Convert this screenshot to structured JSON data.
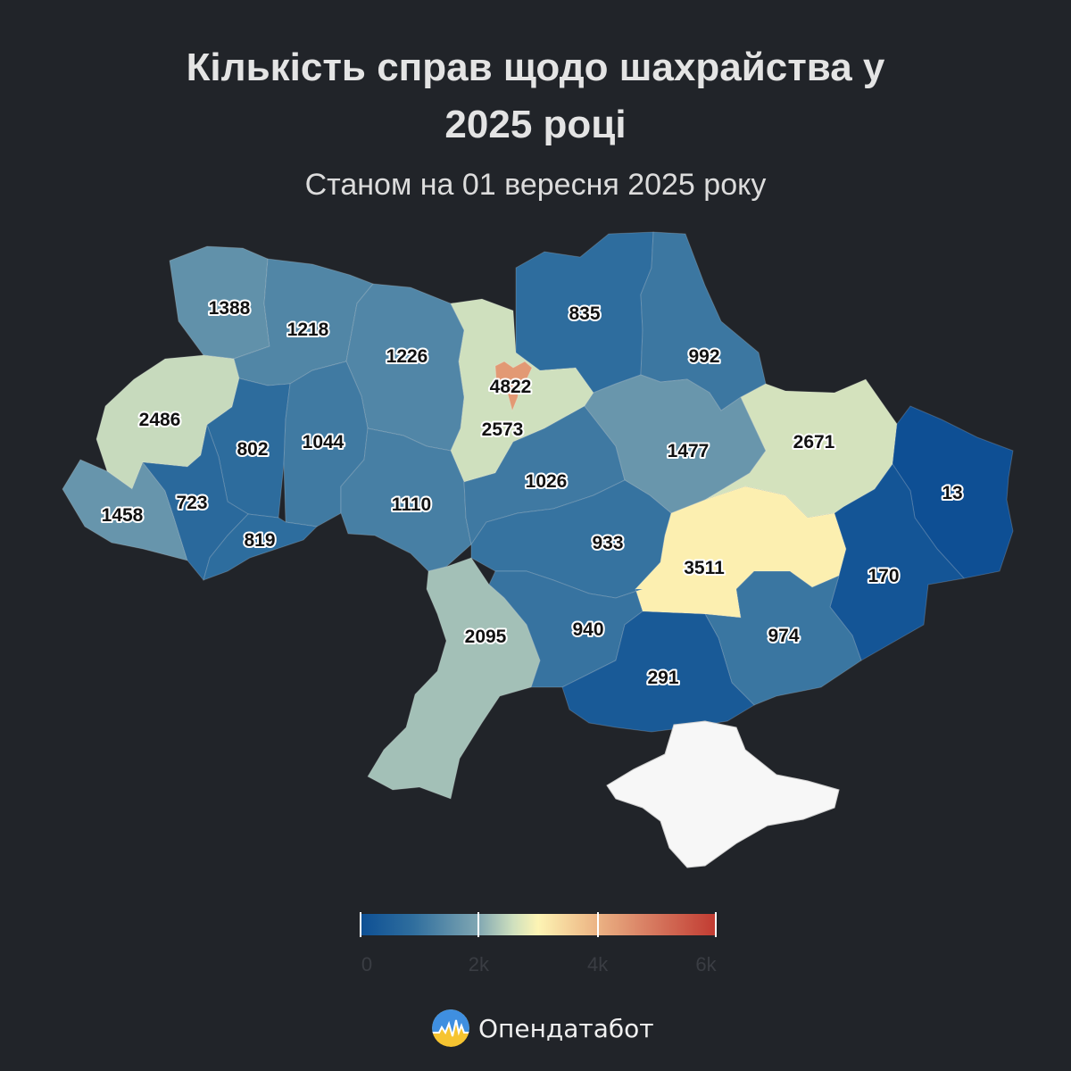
{
  "title_line1": "Кількість справ щодо шахрайства у",
  "title_line2": "2025 році",
  "subtitle": "Станом на 01 вересня 2025 року",
  "legend": {
    "min": 0,
    "max": 6000,
    "ticks": [
      "0",
      "2k",
      "4k",
      "6k"
    ],
    "tick_values": [
      0,
      2000,
      4000,
      6000
    ]
  },
  "brand": {
    "name": "Опендатабот"
  },
  "colors": {
    "background": "#212429",
    "crimea": "#f7f7f7",
    "scale": [
      "#0d4f94",
      "#2f6e9e",
      "#7fa6b2",
      "#cfe0be",
      "#fdf4b4",
      "#f1c48f",
      "#d98064",
      "#c13a31"
    ]
  },
  "regions": [
    {
      "id": "volyn",
      "value": 1388
    },
    {
      "id": "rivne",
      "value": 1218
    },
    {
      "id": "zhytomyr",
      "value": 1226
    },
    {
      "id": "kyiv-city",
      "value": 4822
    },
    {
      "id": "kyiv-oblast",
      "value": 2573
    },
    {
      "id": "chernihiv",
      "value": 835
    },
    {
      "id": "sumy",
      "value": 992
    },
    {
      "id": "lviv",
      "value": 2486
    },
    {
      "id": "ternopil",
      "value": 802
    },
    {
      "id": "khmelnytskyi",
      "value": 1044
    },
    {
      "id": "vinnytsia",
      "value": 1110
    },
    {
      "id": "cherkasy",
      "value": 1026
    },
    {
      "id": "poltava",
      "value": 1477
    },
    {
      "id": "kharkiv",
      "value": 2671
    },
    {
      "id": "zakarpattia",
      "value": 1458
    },
    {
      "id": "ivano-frankivsk",
      "value": 723
    },
    {
      "id": "chernivtsi",
      "value": 819
    },
    {
      "id": "kirovohrad",
      "value": 933
    },
    {
      "id": "dnipropetrovsk",
      "value": 3511
    },
    {
      "id": "luhansk",
      "value": 13
    },
    {
      "id": "donetsk",
      "value": 170
    },
    {
      "id": "zaporizhzhia",
      "value": 974
    },
    {
      "id": "mykolaiv",
      "value": 940
    },
    {
      "id": "kherson",
      "value": 291
    },
    {
      "id": "odesa",
      "value": 2095
    }
  ]
}
